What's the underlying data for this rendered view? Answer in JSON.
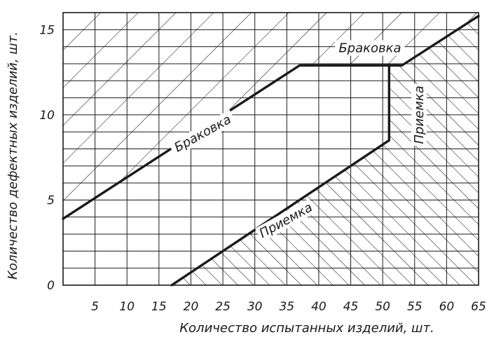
{
  "chart_data": {
    "type": "line",
    "title": "",
    "xlabel": "Количество испытанных изделий, шт.",
    "ylabel": "Количество дефектных изделий, шт.",
    "xlim": [
      0,
      65
    ],
    "ylim": [
      0,
      16
    ],
    "x_ticks": [
      "5",
      "10",
      "15",
      "20",
      "25",
      "30",
      "35",
      "40",
      "45",
      "50",
      "55",
      "60",
      "65"
    ],
    "x_tick_values": [
      5,
      10,
      15,
      20,
      25,
      30,
      35,
      40,
      45,
      50,
      55,
      60,
      65
    ],
    "y_ticks": [
      "0",
      "5",
      "10",
      "15"
    ],
    "y_tick_values": [
      0,
      5,
      10,
      15
    ],
    "grid": true,
    "series": [
      {
        "values": [
          [
            0,
            3.9
          ],
          [
            37,
            12.9
          ],
          [
            51,
            12.9
          ]
        ]
      },
      {
        "values": [
          [
            17,
            0
          ],
          [
            51,
            8.5
          ],
          [
            51,
            12.9
          ],
          [
            53,
            12.9
          ],
          [
            65,
            15.8
          ]
        ]
      }
    ],
    "region_labels": [
      {
        "text": "Браковка",
        "x": 48,
        "y": 13.8,
        "rotation": 0
      },
      {
        "text": "Браковка",
        "x": 22,
        "y": 8.8,
        "rotation": -29
      },
      {
        "text": "Приемка",
        "x": 35,
        "y": 3.7,
        "rotation": -29
      },
      {
        "text": "Приемка",
        "x": 56,
        "y": 10,
        "rotation": -90
      }
    ],
    "ink_color": "#1a1a1a"
  }
}
